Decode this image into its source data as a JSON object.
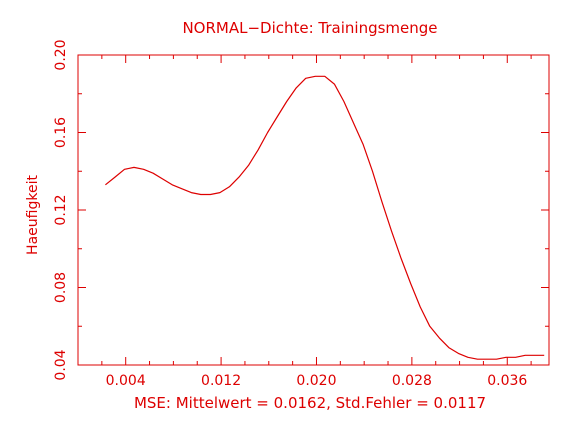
{
  "chart_data": {
    "type": "line",
    "title": "NORMAL−Dichte: Trainingsmenge",
    "xlabel": "MSE: Mittelwert = 0.0162, Std.Fehler = 0.0117",
    "ylabel": "Haeufigkeit",
    "xlim": [
      0.0,
      0.0395
    ],
    "ylim": [
      0.04,
      0.2
    ],
    "x_ticks": [
      "0.004",
      "0.012",
      "0.020",
      "0.028",
      "0.036"
    ],
    "x_tick_values": [
      0.004,
      0.012,
      0.02,
      0.028,
      0.036
    ],
    "y_ticks": [
      "0.04",
      "0.08",
      "0.12",
      "0.16",
      "0.20"
    ],
    "y_tick_values": [
      0.04,
      0.08,
      0.12,
      0.16,
      0.2
    ],
    "grid": false,
    "color": "#dd0000",
    "series": [
      {
        "x": [
          0.0023,
          0.0031,
          0.0039,
          0.0047,
          0.0055,
          0.0063,
          0.0071,
          0.0079,
          0.0087,
          0.0095,
          0.0103,
          0.0111,
          0.0119,
          0.0127,
          0.0135,
          0.0143,
          0.0151,
          0.0159,
          0.0167,
          0.0175,
          0.0183,
          0.0191,
          0.0199,
          0.0207,
          0.0215,
          0.0223,
          0.0231,
          0.0239,
          0.0247,
          0.0255,
          0.0263,
          0.0271,
          0.0279,
          0.0287,
          0.0295,
          0.0303,
          0.0311,
          0.0319,
          0.0327,
          0.0335,
          0.0343,
          0.0351,
          0.0359,
          0.0367,
          0.0375,
          0.0383,
          0.0391
        ],
        "y": [
          0.133,
          0.137,
          0.141,
          0.142,
          0.141,
          0.139,
          0.136,
          0.133,
          0.131,
          0.129,
          0.128,
          0.128,
          0.129,
          0.132,
          0.137,
          0.143,
          0.151,
          0.16,
          0.168,
          0.176,
          0.183,
          0.188,
          0.189,
          0.189,
          0.185,
          0.176,
          0.165,
          0.154,
          0.14,
          0.124,
          0.109,
          0.095,
          0.082,
          0.07,
          0.06,
          0.054,
          0.049,
          0.046,
          0.044,
          0.043,
          0.043,
          0.043,
          0.044,
          0.044,
          0.045,
          0.045,
          0.045
        ]
      }
    ]
  }
}
